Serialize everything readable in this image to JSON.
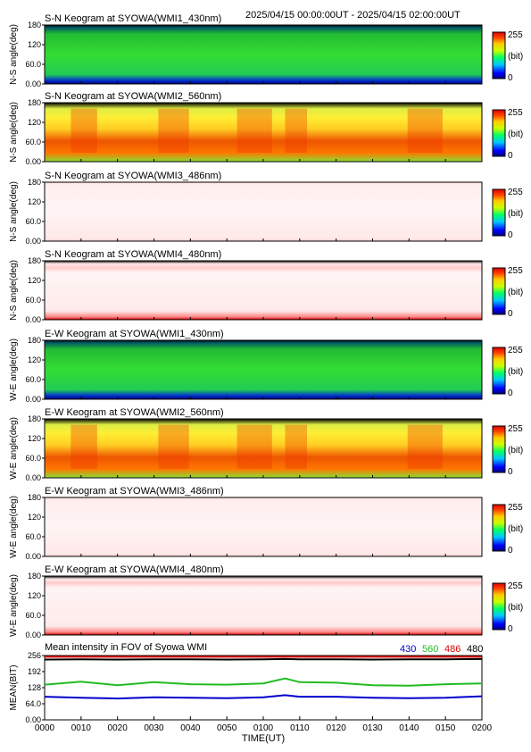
{
  "header": {
    "date_range": "2025/04/15 00:00:00UT - 2025/04/15 02:00:00UT"
  },
  "colorbar": {
    "max_label": "255",
    "unit_label": "(bit)",
    "min_label": "0"
  },
  "panels": [
    {
      "title": "S-N Keogram at SYOWA(WMI1_430nm)",
      "ylabel": "N-S angle(deg)",
      "palette": "green"
    },
    {
      "title": "S-N Keogram at SYOWA(WMI2_560nm)",
      "ylabel": "N-S angle(deg)",
      "palette": "warm"
    },
    {
      "title": "S-N Keogram at SYOWA(WMI3_486nm)",
      "ylabel": "N-S angle(deg)",
      "palette": "pale"
    },
    {
      "title": "S-N Keogram at SYOWA(WMI4_480nm)",
      "ylabel": "N-S angle(deg)",
      "palette": "pale-red"
    },
    {
      "title": "E-W Keogram at SYOWA(WMI1_430nm)",
      "ylabel": "W-E angle(deg)",
      "palette": "green"
    },
    {
      "title": "E-W Keogram at SYOWA(WMI2_560nm)",
      "ylabel": "W-E angle(deg)",
      "palette": "warm"
    },
    {
      "title": "E-W Keogram at SYOWA(WMI3_486nm)",
      "ylabel": "W-E angle(deg)",
      "palette": "pale"
    },
    {
      "title": "E-W Keogram at SYOWA(WMI4_480nm)",
      "ylabel": "W-E angle(deg)",
      "palette": "pale-red"
    }
  ],
  "keogram_yticks": [
    "0.00",
    "60.0",
    "120",
    "180"
  ],
  "mean_panel": {
    "title": "Mean intensity in FOV of Syowa WMI",
    "ylabel": "MEAN(BIT)",
    "yticks": [
      "0.00",
      "64.0",
      "128",
      "192",
      "256"
    ],
    "legend": [
      {
        "label": "430",
        "color": "#0000cc"
      },
      {
        "label": "560",
        "color": "#22bb22"
      },
      {
        "label": "486",
        "color": "#dd0000"
      },
      {
        "label": "480",
        "color": "#000000"
      }
    ]
  },
  "xaxis": {
    "label": "TIME(UT)",
    "ticks": [
      "0000",
      "0010",
      "0020",
      "0030",
      "0040",
      "0050",
      "0100",
      "0110",
      "0120",
      "0130",
      "0140",
      "0150",
      "0200"
    ]
  },
  "chart_data": {
    "type": "line",
    "title": "Mean intensity in FOV of Syowa WMI",
    "xlabel": "TIME(UT)",
    "ylabel": "MEAN(BIT)",
    "ylim": [
      0,
      256
    ],
    "x": [
      0,
      10,
      20,
      30,
      40,
      50,
      60,
      66,
      70,
      80,
      90,
      100,
      110,
      120
    ],
    "series": [
      {
        "name": "480",
        "color": "#000000",
        "values": [
          240,
          241,
          240,
          241,
          241,
          240,
          241,
          242,
          241,
          241,
          240,
          241,
          241,
          242
        ]
      },
      {
        "name": "486",
        "color": "#dd0000",
        "values": [
          251,
          251,
          251,
          251,
          251,
          251,
          251,
          251,
          251,
          251,
          251,
          251,
          251,
          251
        ]
      },
      {
        "name": "560",
        "color": "#22bb22",
        "values": [
          140,
          152,
          138,
          150,
          142,
          140,
          145,
          165,
          150,
          148,
          138,
          136,
          142,
          145
        ]
      },
      {
        "name": "430",
        "color": "#0000cc",
        "values": [
          92,
          88,
          85,
          90,
          88,
          86,
          90,
          98,
          92,
          92,
          88,
          86,
          88,
          94
        ]
      }
    ]
  }
}
